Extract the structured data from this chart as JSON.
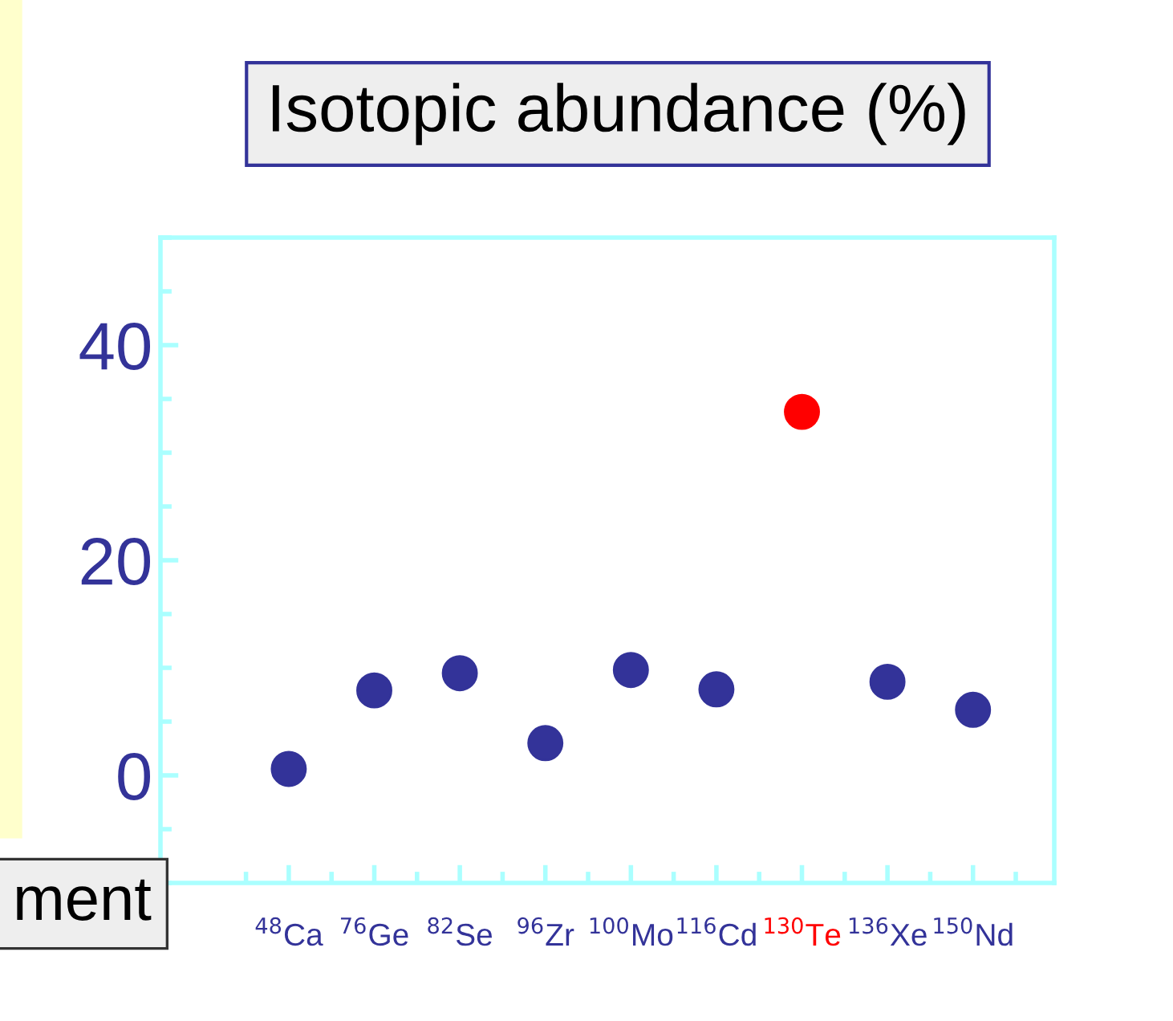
{
  "chart_data": {
    "type": "scatter",
    "title": "Isotopic abundance (%)",
    "categories": [
      "$^{48}$Ca",
      "$^{76}$Ge",
      "$^{82}$Se",
      "$^{96}$Zr",
      "$^{100}$Mo",
      "$^{116}$Cd",
      "$^{130}$Te",
      "$^{136}$Xe",
      "$^{150}$Nd"
    ],
    "series": [
      {
        "values": [
          0.6,
          7.9,
          9.5,
          3.0,
          9.8,
          8.0,
          33.8,
          8.7,
          6.1
        ],
        "colors": [
          "#333399",
          "#333399",
          "#333399",
          "#333399",
          "#333399",
          "#333399",
          "#ff0000",
          "#333399",
          "#333399"
        ]
      }
    ],
    "ylim": [
      -10,
      50
    ],
    "yticks": [
      0,
      20,
      40
    ],
    "marker": "circle",
    "grid": false,
    "legend": false,
    "annotations": [
      "ment"
    ]
  }
}
